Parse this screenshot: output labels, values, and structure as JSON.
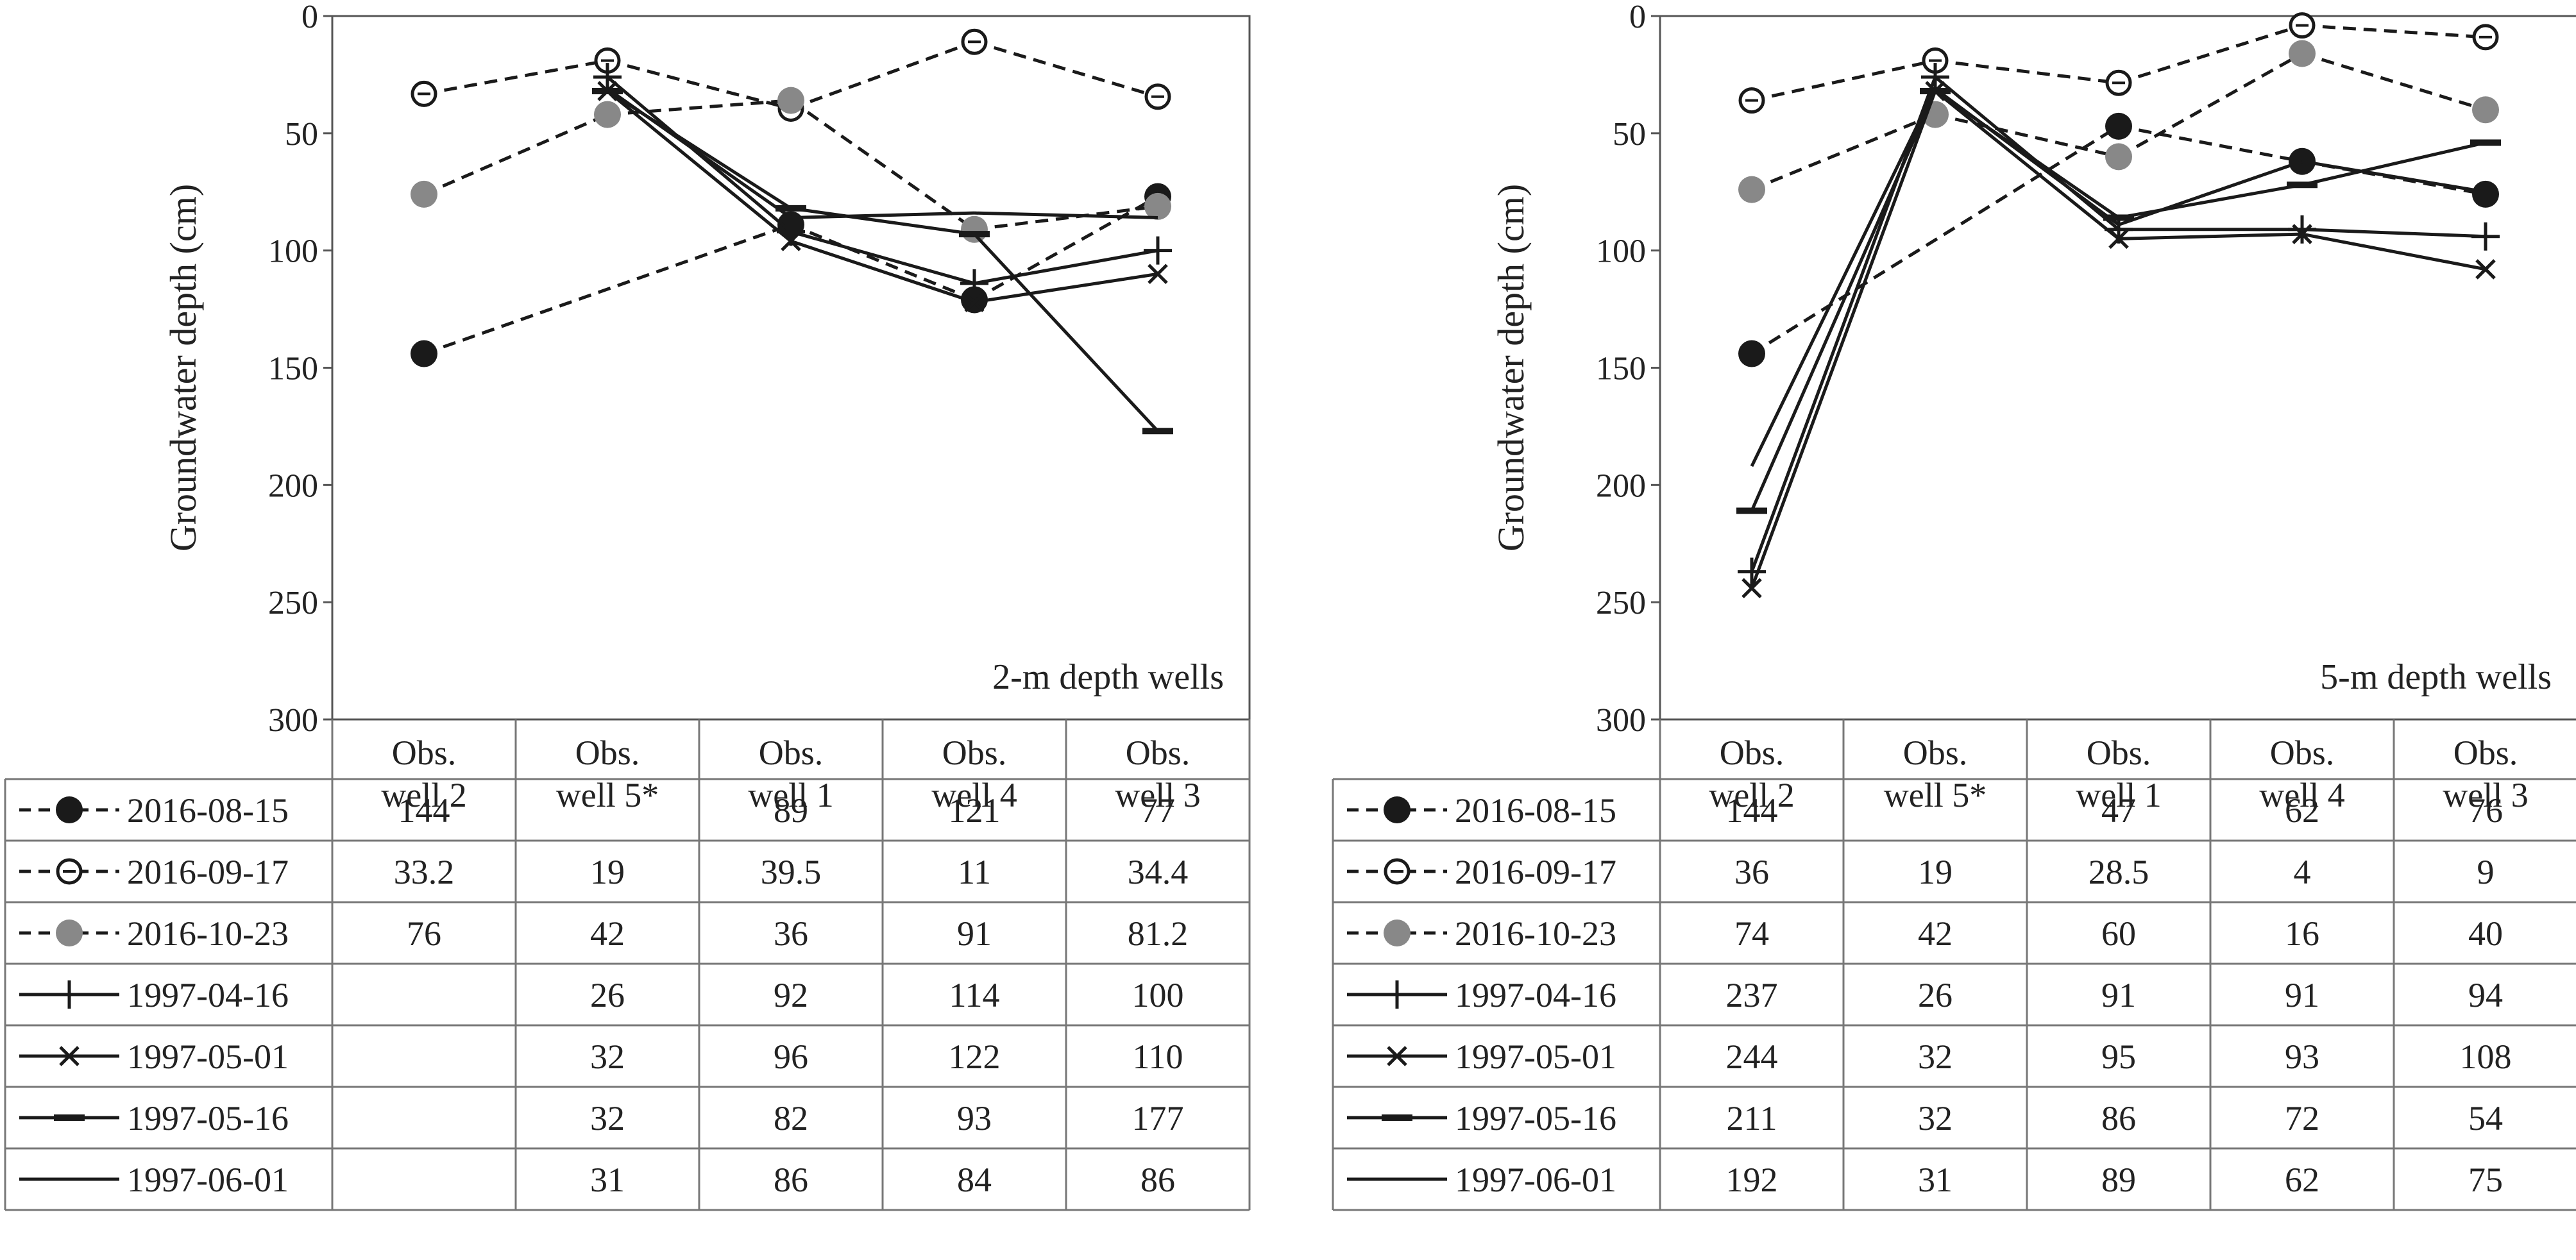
{
  "chart_data": [
    {
      "type": "line",
      "title": "",
      "xlabel": "",
      "ylabel": "Groundwater depth (cm)",
      "annotation": "2-m depth wells",
      "ylim": [
        0,
        300
      ],
      "y_inverted": true,
      "yticks": [
        0,
        50,
        100,
        150,
        200,
        250,
        300
      ],
      "grid": false,
      "legend": "table-below",
      "categories": [
        "Obs. well 2",
        "Obs. well 5*",
        "Obs. well 1",
        "Obs. well 4",
        "Obs. well 3"
      ],
      "series": [
        {
          "name": "2016-08-15",
          "style": "dashed",
          "marker": "filled-circle",
          "color": "#1a1a1a",
          "values": [
            144,
            null,
            89,
            121,
            77
          ],
          "labels": [
            "144",
            "",
            "89",
            "121",
            "77"
          ]
        },
        {
          "name": "2016-09-17",
          "style": "dashed",
          "marker": "open-circle",
          "color": "#1a1a1a",
          "values": [
            33.2,
            19,
            39.5,
            11,
            34.4
          ],
          "labels": [
            "33.2",
            "19",
            "39.5",
            "11",
            "34.4"
          ]
        },
        {
          "name": "2016-10-23",
          "style": "dashed",
          "marker": "gray-circle",
          "color": "#888888",
          "values": [
            76,
            42,
            36,
            91,
            81.2
          ],
          "labels": [
            "76",
            "42",
            "36",
            "91",
            "81.2"
          ]
        },
        {
          "name": "1997-04-16",
          "style": "solid",
          "marker": "plus",
          "color": "#1a1a1a",
          "values": [
            null,
            26,
            92,
            114,
            100
          ],
          "labels": [
            "",
            "26",
            "92",
            "114",
            "100"
          ]
        },
        {
          "name": "1997-05-01",
          "style": "solid",
          "marker": "cross",
          "color": "#1a1a1a",
          "values": [
            null,
            32,
            96,
            122,
            110
          ],
          "labels": [
            "",
            "32",
            "96",
            "122",
            "110"
          ]
        },
        {
          "name": "1997-05-16",
          "style": "solid",
          "marker": "dash",
          "color": "#1a1a1a",
          "values": [
            null,
            32,
            82,
            93,
            177
          ],
          "labels": [
            "",
            "32",
            "82",
            "93",
            "177"
          ]
        },
        {
          "name": "1997-06-01",
          "style": "solid",
          "marker": "none",
          "color": "#1a1a1a",
          "values": [
            null,
            31,
            86,
            84,
            86
          ],
          "labels": [
            "",
            "31",
            "86",
            "84",
            "86"
          ]
        }
      ]
    },
    {
      "type": "line",
      "title": "",
      "xlabel": "",
      "ylabel": "Groundwater depth (cm)",
      "annotation": "5-m depth wells",
      "ylim": [
        0,
        300
      ],
      "y_inverted": true,
      "yticks": [
        0,
        50,
        100,
        150,
        200,
        250,
        300
      ],
      "grid": false,
      "legend": "table-below",
      "categories": [
        "Obs. well 2",
        "Obs. well 5*",
        "Obs. well 1",
        "Obs. well 4",
        "Obs. well 3"
      ],
      "series": [
        {
          "name": "2016-08-15",
          "style": "dashed",
          "marker": "filled-circle",
          "color": "#1a1a1a",
          "values": [
            144,
            null,
            47,
            62,
            76
          ],
          "labels": [
            "144",
            "",
            "47",
            "62",
            "76"
          ]
        },
        {
          "name": "2016-09-17",
          "style": "dashed",
          "marker": "open-circle",
          "color": "#1a1a1a",
          "values": [
            36,
            19,
            28.5,
            4,
            9
          ],
          "labels": [
            "36",
            "19",
            "28.5",
            "4",
            "9"
          ]
        },
        {
          "name": "2016-10-23",
          "style": "dashed",
          "marker": "gray-circle",
          "color": "#888888",
          "values": [
            74,
            42,
            60,
            16,
            40
          ],
          "labels": [
            "74",
            "42",
            "60",
            "16",
            "40"
          ]
        },
        {
          "name": "1997-04-16",
          "style": "solid",
          "marker": "plus",
          "color": "#1a1a1a",
          "values": [
            237,
            26,
            91,
            91,
            94
          ],
          "labels": [
            "237",
            "26",
            "91",
            "91",
            "94"
          ]
        },
        {
          "name": "1997-05-01",
          "style": "solid",
          "marker": "cross",
          "color": "#1a1a1a",
          "values": [
            244,
            32,
            95,
            93,
            108
          ],
          "labels": [
            "244",
            "32",
            "95",
            "93",
            "108"
          ]
        },
        {
          "name": "1997-05-16",
          "style": "solid",
          "marker": "dash",
          "color": "#1a1a1a",
          "values": [
            211,
            32,
            86,
            72,
            54
          ],
          "labels": [
            "211",
            "32",
            "86",
            "72",
            "54"
          ]
        },
        {
          "name": "1997-06-01",
          "style": "solid",
          "marker": "none",
          "color": "#1a1a1a",
          "values": [
            192,
            31,
            89,
            62,
            75
          ],
          "labels": [
            "192",
            "31",
            "89",
            "62",
            "75"
          ]
        }
      ]
    }
  ]
}
